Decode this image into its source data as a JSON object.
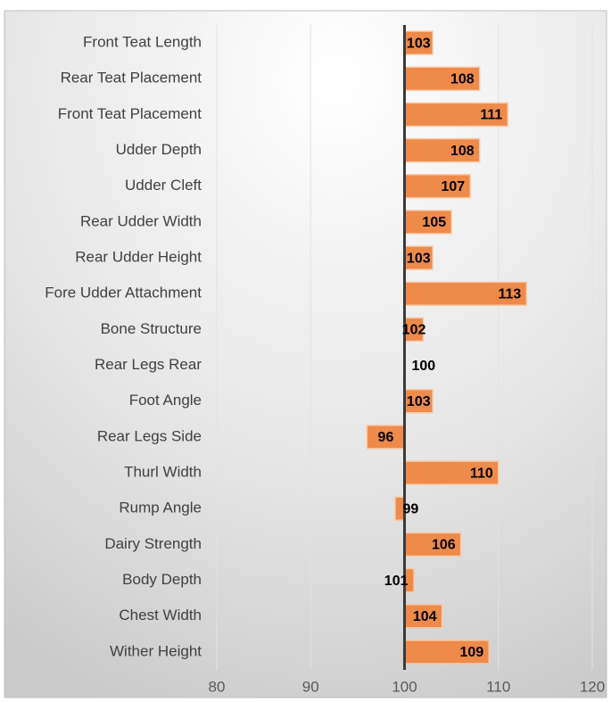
{
  "chart_data": {
    "type": "bar",
    "orientation": "horizontal",
    "categories": [
      "Front Teat Length",
      "Rear Teat Placement",
      "Front Teat Placement",
      "Udder Depth",
      "Udder Cleft",
      "Rear Udder Width",
      "Rear Udder Height",
      "Fore Udder Attachment",
      "Bone Structure",
      "Rear Legs Rear",
      "Foot Angle",
      "Rear Legs Side",
      "Thurl Width",
      "Rump Angle",
      "Dairy Strength",
      "Body Depth",
      "Chest Width",
      "Wither Height"
    ],
    "values": [
      103,
      108,
      111,
      108,
      107,
      105,
      103,
      113,
      102,
      100,
      103,
      96,
      110,
      99,
      106,
      101,
      104,
      109
    ],
    "color": "#ee8a4a",
    "base": 100,
    "xlim": [
      80,
      120
    ],
    "xticks": [
      80,
      90,
      100,
      110,
      120
    ],
    "grid": true
  }
}
